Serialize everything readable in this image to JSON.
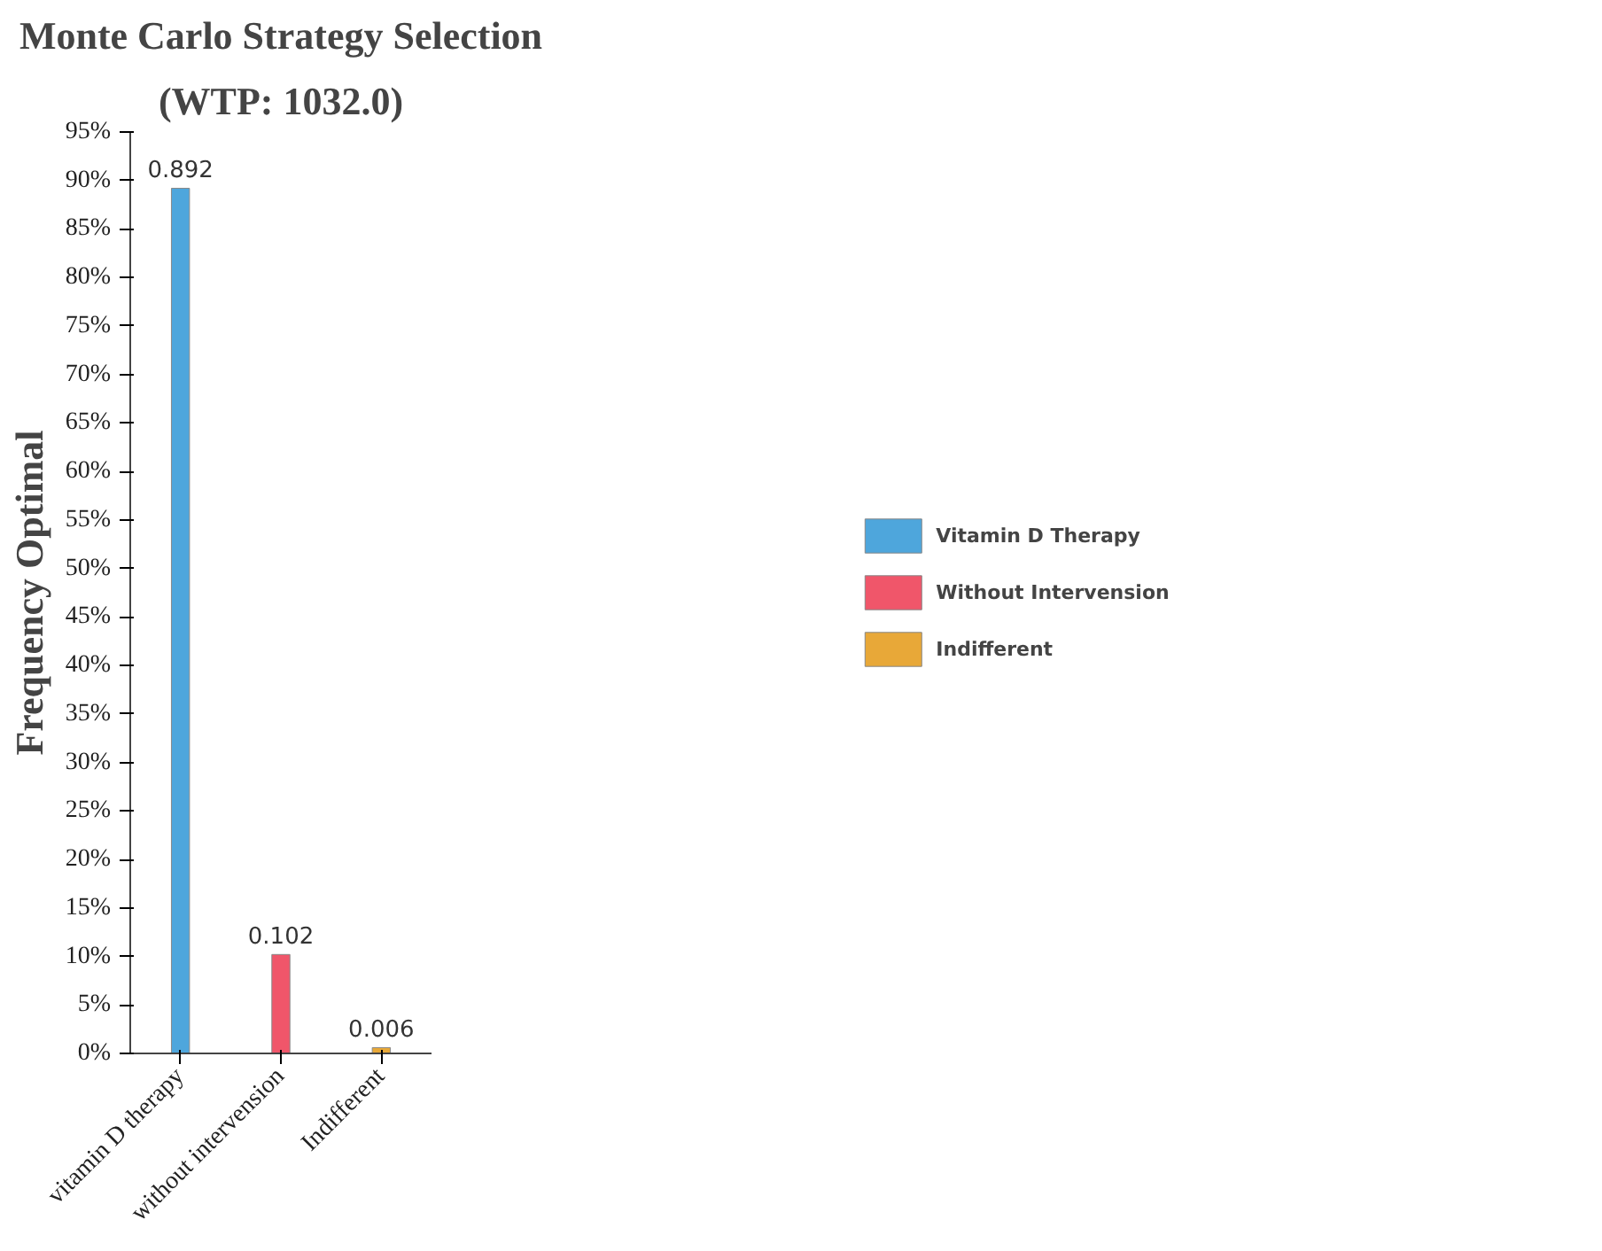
{
  "chart_data": {
    "type": "bar",
    "title": "Monte Carlo Strategy Selection",
    "subtitle": "(WTP: 1032.0)",
    "ylabel": "Frequency Optimal",
    "categories": [
      "vitamin D therapy",
      "without intervension",
      "Indifferent"
    ],
    "series": [
      {
        "name": "Vitamin D Therapy",
        "color": "#4ea6dc",
        "values": [
          0.892,
          null,
          null
        ]
      },
      {
        "name": "Without Intervension",
        "color": "#f0566a",
        "values": [
          null,
          0.102,
          null
        ]
      },
      {
        "name": "Indifferent",
        "color": "#e8a838",
        "values": [
          null,
          null,
          0.006
        ]
      }
    ],
    "ylim": [
      0,
      0.95
    ],
    "yticks": [
      {
        "value": 0,
        "label": "0%"
      },
      {
        "value": 0.05,
        "label": "5%"
      },
      {
        "value": 0.1,
        "label": "10%"
      },
      {
        "value": 0.15,
        "label": "15%"
      },
      {
        "value": 0.2,
        "label": "20%"
      },
      {
        "value": 0.25,
        "label": "25%"
      },
      {
        "value": 0.3,
        "label": "30%"
      },
      {
        "value": 0.35,
        "label": "35%"
      },
      {
        "value": 0.4,
        "label": "40%"
      },
      {
        "value": 0.45,
        "label": "45%"
      },
      {
        "value": 0.5,
        "label": "50%"
      },
      {
        "value": 0.55,
        "label": "55%"
      },
      {
        "value": 0.6,
        "label": "60%"
      },
      {
        "value": 0.65,
        "label": "65%"
      },
      {
        "value": 0.7,
        "label": "70%"
      },
      {
        "value": 0.75,
        "label": "75%"
      },
      {
        "value": 0.8,
        "label": "80%"
      },
      {
        "value": 0.85,
        "label": "85%"
      },
      {
        "value": 0.9,
        "label": "90%"
      },
      {
        "value": 0.95,
        "label": "95%"
      }
    ],
    "data_labels": true,
    "grid": false,
    "legend": "right"
  }
}
